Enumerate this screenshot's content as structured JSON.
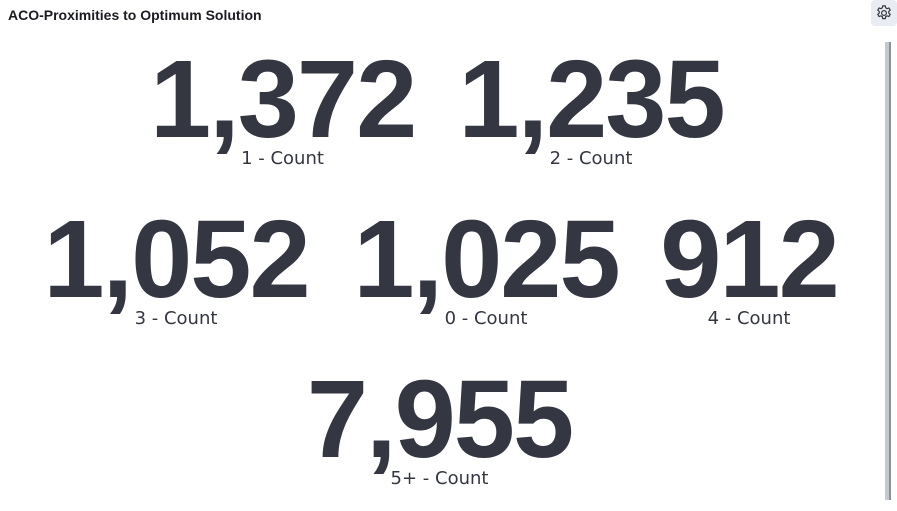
{
  "panel": {
    "title": "ACO-Proximities to Optimum Solution",
    "settings_icon": "gear-icon"
  },
  "metrics": [
    {
      "value": "1,372",
      "label": "1 - Count"
    },
    {
      "value": "1,235",
      "label": "2 - Count"
    },
    {
      "value": "1,052",
      "label": "3 - Count"
    },
    {
      "value": "1,025",
      "label": "0 - Count"
    },
    {
      "value": "912",
      "label": "4 - Count"
    },
    {
      "value": "7,955",
      "label": "5+ - Count"
    }
  ],
  "colors": {
    "text": "#343741",
    "title": "#1a1c21",
    "gear_bg": "#e9edf3"
  }
}
